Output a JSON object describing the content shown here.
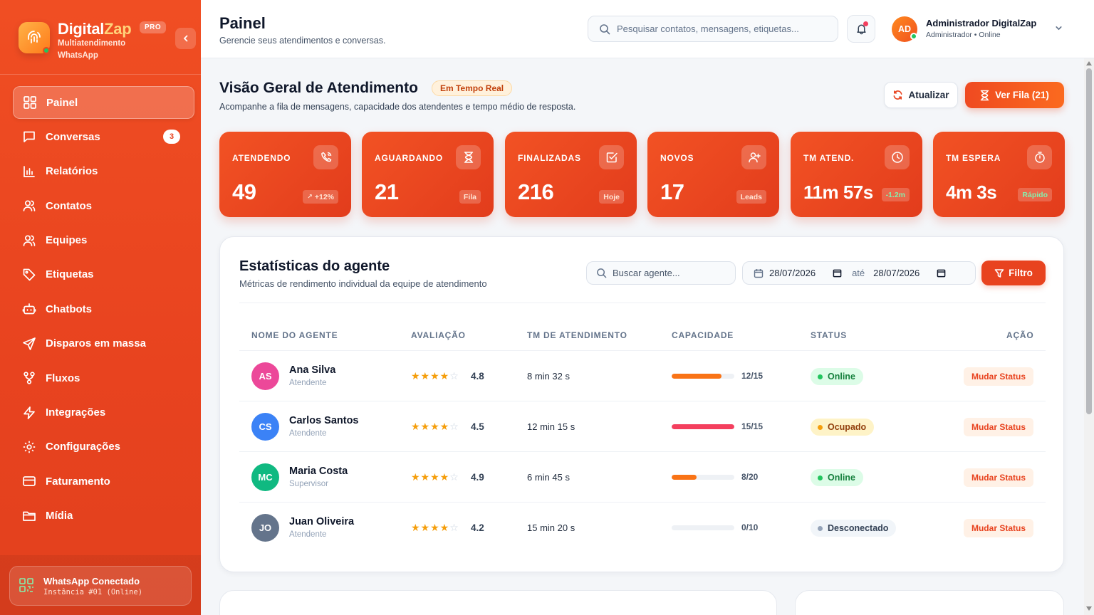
{
  "brand": {
    "name_main": "Digital",
    "name_accent": "Zap",
    "pro_badge": "PRO",
    "subtitle": "Multiatendimento WhatsApp"
  },
  "sidebar": {
    "items": [
      {
        "label": "Painel",
        "icon": "grid-icon",
        "active": true
      },
      {
        "label": "Conversas",
        "icon": "chat-icon",
        "badge": "3"
      },
      {
        "label": "Relatórios",
        "icon": "chart-icon"
      },
      {
        "label": "Contatos",
        "icon": "users-icon"
      },
      {
        "label": "Equipes",
        "icon": "team-icon"
      },
      {
        "label": "Etiquetas",
        "icon": "tag-icon"
      },
      {
        "label": "Chatbots",
        "icon": "bot-icon"
      },
      {
        "label": "Disparos em massa",
        "icon": "send-icon"
      },
      {
        "label": "Fluxos",
        "icon": "flow-icon"
      },
      {
        "label": "Integrações",
        "icon": "zap-icon"
      },
      {
        "label": "Configurações",
        "icon": "gear-icon"
      },
      {
        "label": "Faturamento",
        "icon": "card-icon"
      },
      {
        "label": "Mídia",
        "icon": "folder-icon"
      }
    ],
    "whatsapp": {
      "title": "WhatsApp Conectado",
      "instance": "Instância #01 (Online)"
    }
  },
  "header": {
    "title": "Painel",
    "subtitle": "Gerencie seus atendimentos e conversas.",
    "search_placeholder": "Pesquisar contatos, mensagens, etiquetas...",
    "user": {
      "initials": "AD",
      "name": "Administrador DigitalZap",
      "role": "Administrador • Online"
    }
  },
  "overview": {
    "title": "Visão Geral de Atendimento",
    "live_badge": "Em Tempo Real",
    "subtitle": "Acompanhe a fila de mensagens, capacidade dos atendentes e tempo médio de resposta.",
    "refresh_label": "Atualizar",
    "queue_label": "Ver Fila (21)"
  },
  "kpis": [
    {
      "label": "ATENDENDO",
      "value": "49",
      "tag": "+12%",
      "icon": "phone-icon"
    },
    {
      "label": "AGUARDANDO",
      "value": "21",
      "tag": "Fila",
      "icon": "hourglass-icon"
    },
    {
      "label": "FINALIZADAS",
      "value": "216",
      "tag": "Hoje",
      "icon": "check-square-icon"
    },
    {
      "label": "NOVOS",
      "value": "17",
      "tag": "Leads",
      "icon": "user-plus-icon"
    },
    {
      "label": "TM ATEND.",
      "value": "11m 57s",
      "tag": "-1.2m",
      "icon": "clock-icon"
    },
    {
      "label": "TM ESPERA",
      "value": "4m 3s",
      "tag": "Rápido",
      "icon": "timer-icon"
    }
  ],
  "agents": {
    "title": "Estatísticas do agente",
    "subtitle": "Métricas de rendimento individual da equipe de atendimento",
    "search_placeholder": "Buscar agente...",
    "date_from": "28/07/2026",
    "date_sep": "até",
    "date_to": "28/07/2026",
    "filter_label": "Filtro",
    "columns": [
      "NOME DO AGENTE",
      "AVALIAÇÃO",
      "TM DE ATENDIMENTO",
      "CAPACIDADE",
      "STATUS",
      "AÇÃO"
    ],
    "rows": [
      {
        "initials": "AS",
        "name": "Ana Silva",
        "role": "Atendente",
        "rating": "4.8",
        "stars": 4,
        "tm": "8 min 32 s",
        "capacity": "12/15",
        "capacity_ratio": 0.8,
        "status": "Online",
        "action": "Mudar Status",
        "avatar_color": "#ec4899",
        "bar_color": "#f97316",
        "status_kind": "online"
      },
      {
        "initials": "CS",
        "name": "Carlos Santos",
        "role": "Atendente",
        "rating": "4.5",
        "stars": 4,
        "tm": "12 min 15 s",
        "capacity": "15/15",
        "capacity_ratio": 1.0,
        "status": "Ocupado",
        "action": "Mudar Status",
        "avatar_color": "#3b82f6",
        "bar_color": "#f43f5e",
        "status_kind": "busy"
      },
      {
        "initials": "MC",
        "name": "Maria Costa",
        "role": "Supervisor",
        "rating": "4.9",
        "stars": 4,
        "tm": "6 min 45 s",
        "capacity": "8/20",
        "capacity_ratio": 0.4,
        "status": "Online",
        "action": "Mudar Status",
        "avatar_color": "#10b981",
        "bar_color": "#f97316",
        "status_kind": "online"
      },
      {
        "initials": "JO",
        "name": "Juan Oliveira",
        "role": "Atendente",
        "rating": "4.2",
        "stars": 4,
        "tm": "15 min 20 s",
        "capacity": "0/10",
        "capacity_ratio": 0.0,
        "status": "Desconectado",
        "action": "Mudar Status",
        "avatar_color": "#64748b",
        "bar_color": "#cbd5e1",
        "status_kind": "off"
      }
    ]
  }
}
